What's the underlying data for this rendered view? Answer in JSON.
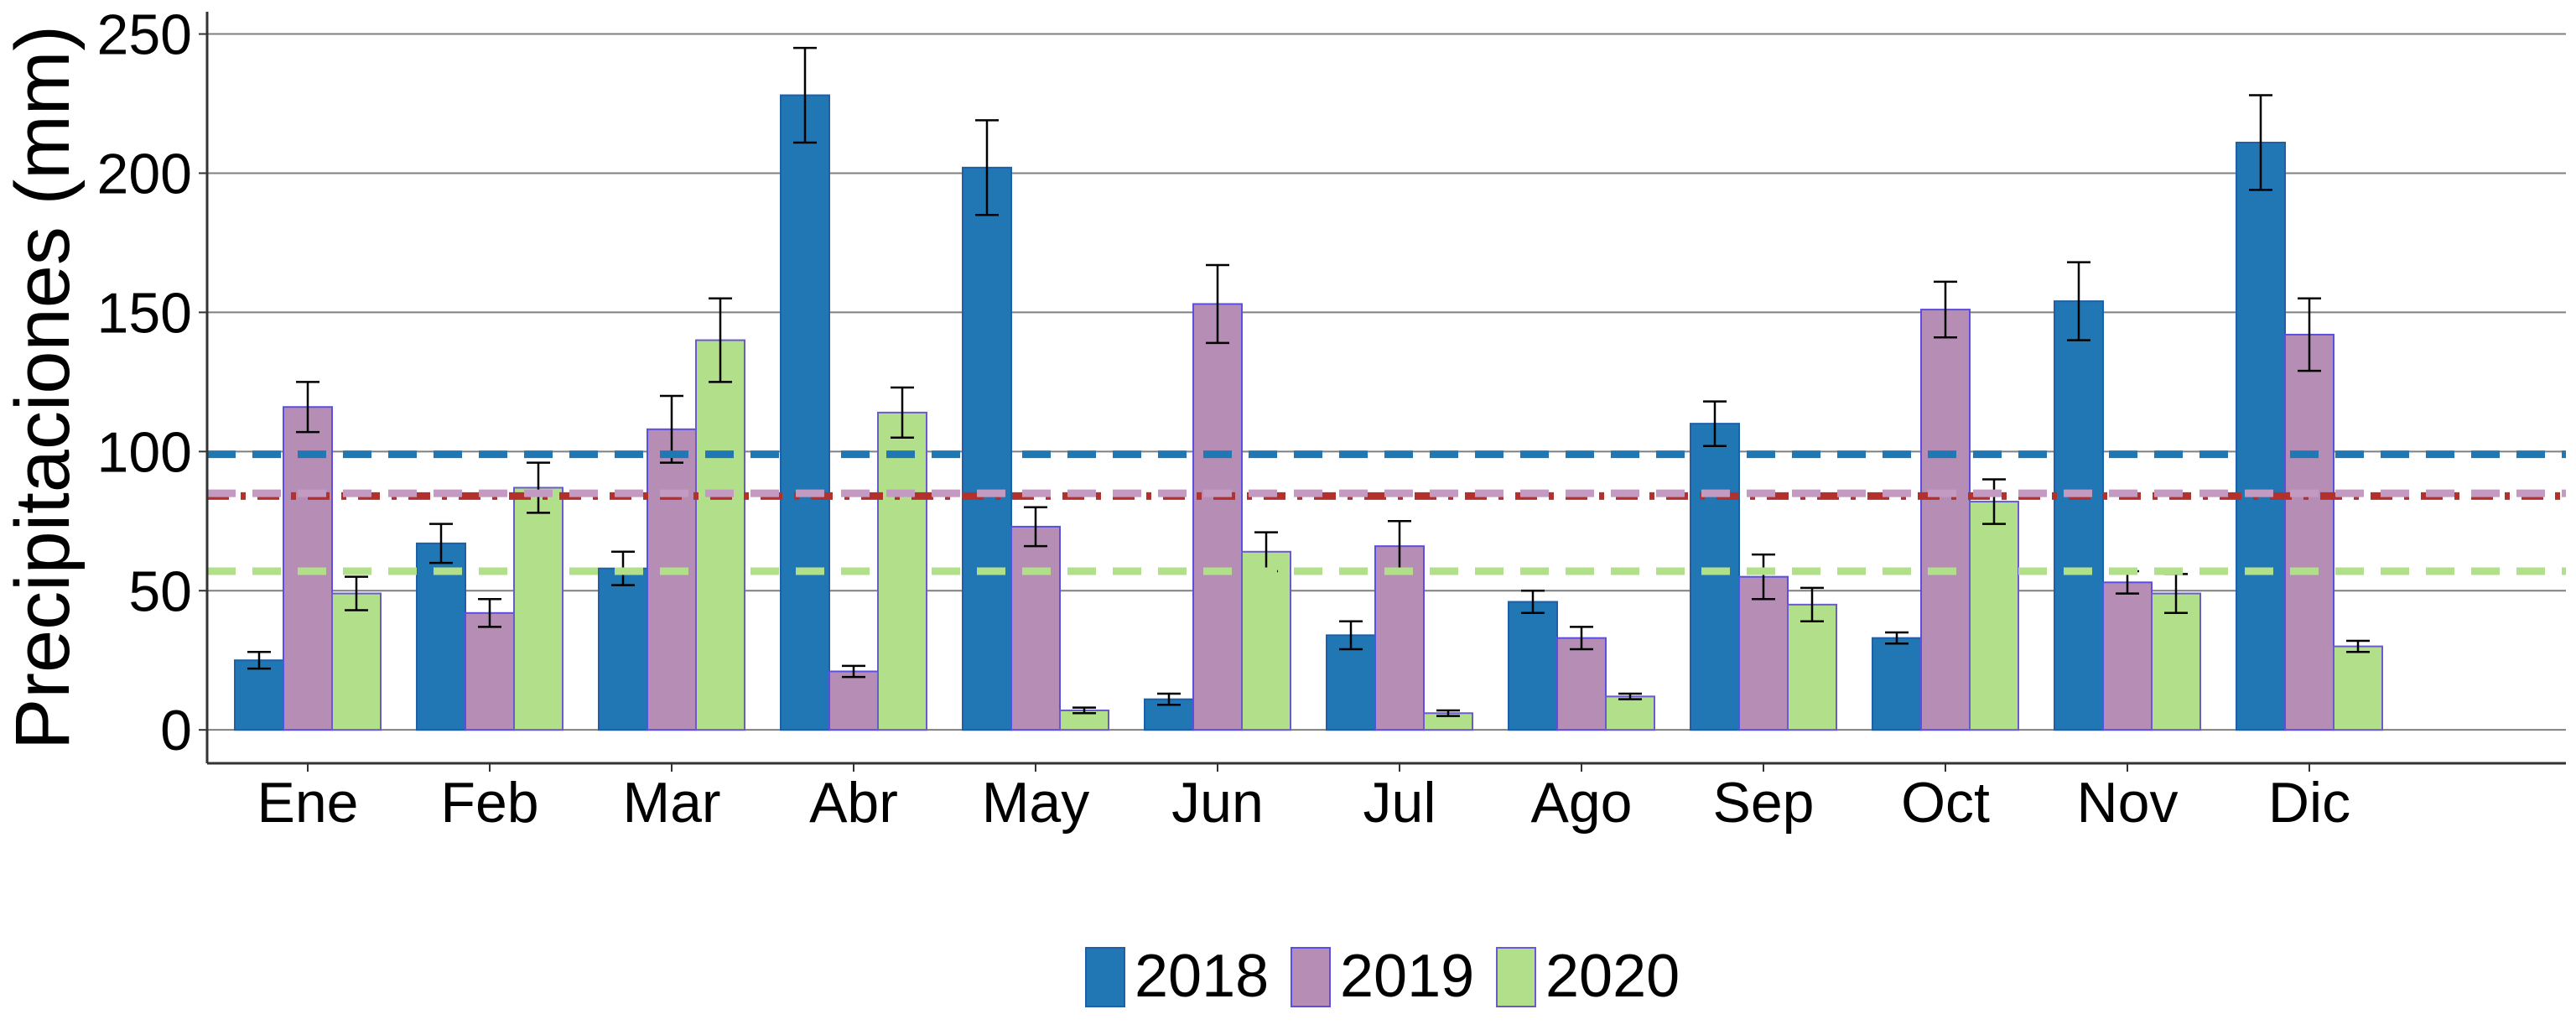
{
  "chart_data": {
    "type": "bar",
    "ylabel": "Precipitaciones (mm)",
    "xlabel": "",
    "ylim": [
      -12,
      258
    ],
    "yticks": [
      0,
      50,
      100,
      150,
      200,
      250
    ],
    "grid": "horizontal major lines",
    "legend_position": "bottom",
    "categories": [
      "Ene",
      "Feb",
      "Mar",
      "Abr",
      "May",
      "Jun",
      "Jul",
      "Ago",
      "Sep",
      "Oct",
      "Nov",
      "Dic"
    ],
    "series": [
      {
        "name": "2018",
        "color": "#2077b4",
        "edge": "#1f5fa8",
        "values": [
          25,
          67,
          58,
          228,
          202,
          11,
          34,
          46,
          110,
          33,
          154,
          211
        ],
        "errors": [
          3,
          7,
          6,
          17,
          17,
          2,
          5,
          4,
          8,
          2,
          14,
          17
        ]
      },
      {
        "name": "2019",
        "color": "#b68db5",
        "edge": "#5a4fe0",
        "values": [
          116,
          42,
          108,
          21,
          73,
          153,
          66,
          33,
          55,
          151,
          53,
          142
        ],
        "errors": [
          9,
          5,
          12,
          2,
          7,
          14,
          9,
          4,
          8,
          10,
          4,
          13
        ]
      },
      {
        "name": "2020",
        "color": "#b2df8a",
        "edge": "#6a5acd",
        "values": [
          49,
          87,
          140,
          114,
          7,
          64,
          6,
          12,
          45,
          82,
          49,
          30
        ],
        "errors": [
          6,
          9,
          15,
          9,
          1,
          7,
          1,
          1,
          6,
          8,
          7,
          2
        ]
      }
    ],
    "reference_lines": [
      {
        "value": 99,
        "color": "#1f78b4",
        "style": "dashed"
      },
      {
        "value": 84,
        "color": "#b2312c",
        "style": "dotdash"
      },
      {
        "value": 85,
        "color": "#c29ac2",
        "style": "dashed"
      },
      {
        "value": 57,
        "color": "#b2df8a",
        "style": "dashed"
      }
    ]
  }
}
